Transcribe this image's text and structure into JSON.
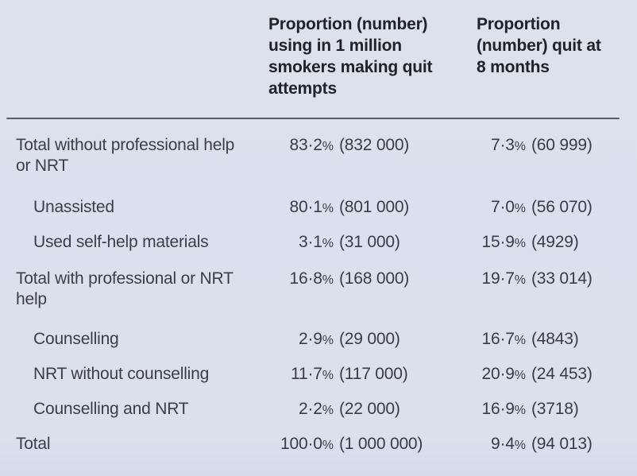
{
  "page": {
    "background_color": "#dce0ed",
    "rule_color": "#565a6b",
    "header_text_color": "#20212b",
    "body_text_color": "#3c3d49"
  },
  "table": {
    "percent_sign": "%",
    "header": {
      "col_label": "",
      "col1": "Proportion (number) using in 1 million smokers making quit attempts",
      "col2": "Proportion (number) quit at 8 months"
    },
    "rows": [
      {
        "label": "Total without professional help or NRT",
        "indent": false,
        "uses_pct": "83·2",
        "uses_n": "(832 000)",
        "quit_pct": "7·3",
        "quit_n": "(60 999)"
      },
      {
        "label": "Unassisted",
        "indent": true,
        "uses_pct": "80·1",
        "uses_n": "(801 000)",
        "quit_pct": "7·0",
        "quit_n": "(56 070)"
      },
      {
        "label": "Used self-help materials",
        "indent": true,
        "uses_pct": "3·1",
        "uses_n": "(31 000)",
        "quit_pct": "15·9",
        "quit_n": "(4929)"
      },
      {
        "label": "Total with professional or NRT help",
        "indent": false,
        "uses_pct": "16·8",
        "uses_n": "(168 000)",
        "quit_pct": "19·7",
        "quit_n": "(33 014)"
      },
      {
        "label": "Counselling",
        "indent": true,
        "uses_pct": "2·9",
        "uses_n": "(29 000)",
        "quit_pct": "16·7",
        "quit_n": "(4843)"
      },
      {
        "label": "NRT without counselling",
        "indent": true,
        "uses_pct": "11·7",
        "uses_n": "(117 000)",
        "quit_pct": "20·9",
        "quit_n": "(24 453)"
      },
      {
        "label": "Counselling and NRT",
        "indent": true,
        "uses_pct": "2·2",
        "uses_n": "(22 000)",
        "quit_pct": "16·9",
        "quit_n": "(3718)"
      },
      {
        "label": "Total",
        "indent": false,
        "uses_pct": "100·0",
        "uses_n": "(1 000 000)",
        "quit_pct": "9·4",
        "quit_n": "(94 013)"
      }
    ]
  },
  "chart_data": {
    "type": "table",
    "columns": [
      "",
      "Proportion (number) using in 1 million smokers making quit attempts",
      "Proportion (number) quit at 8 months"
    ],
    "rows": [
      [
        "Total without professional help or NRT",
        "83·2% (832 000)",
        "7·3% (60 999)"
      ],
      [
        "Unassisted",
        "80·1% (801 000)",
        "7·0% (56 070)"
      ],
      [
        "Used self-help materials",
        "3·1% (31 000)",
        "15·9% (4929)"
      ],
      [
        "Total with professional or NRT help",
        "16·8% (168 000)",
        "19·7% (33 014)"
      ],
      [
        "Counselling",
        "2·9% (29 000)",
        "16·7% (4843)"
      ],
      [
        "NRT without counselling",
        "11·7% (117 000)",
        "20·9% (24 453)"
      ],
      [
        "Counselling and NRT",
        "2·2% (22 000)",
        "16·9% (3718)"
      ],
      [
        "Total",
        "100·0% (1 000 000)",
        "9·4% (94 013)"
      ]
    ]
  }
}
